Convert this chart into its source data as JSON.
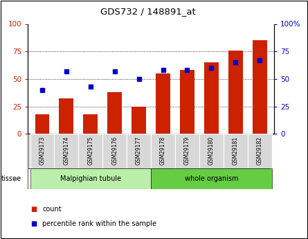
{
  "title": "GDS732 / 148891_at",
  "samples": [
    "GSM29173",
    "GSM29174",
    "GSM29175",
    "GSM29176",
    "GSM29177",
    "GSM29178",
    "GSM29179",
    "GSM29180",
    "GSM29181",
    "GSM29182"
  ],
  "count_values": [
    18,
    32,
    18,
    38,
    25,
    55,
    58,
    65,
    76,
    85
  ],
  "percentile_values": [
    40,
    57,
    43,
    57,
    50,
    58,
    58,
    60,
    65,
    67
  ],
  "tissue_groups": [
    {
      "label": "Malpighian tubule",
      "start": 0,
      "end": 5,
      "color": "#bbeeaa"
    },
    {
      "label": "whole organism",
      "start": 5,
      "end": 10,
      "color": "#66cc44"
    }
  ],
  "bar_color": "#cc2200",
  "dot_color": "#0000cc",
  "ylim_left": [
    0,
    100
  ],
  "ylim_right": [
    0,
    100
  ],
  "yticks": [
    0,
    25,
    50,
    75,
    100
  ],
  "grid_values": [
    25,
    50,
    75
  ],
  "left_axis_color": "#cc2200",
  "right_axis_color": "#0000cc",
  "tissue_label": "tissue",
  "legend_count_label": "count",
  "legend_pct_label": "percentile rank within the sample"
}
